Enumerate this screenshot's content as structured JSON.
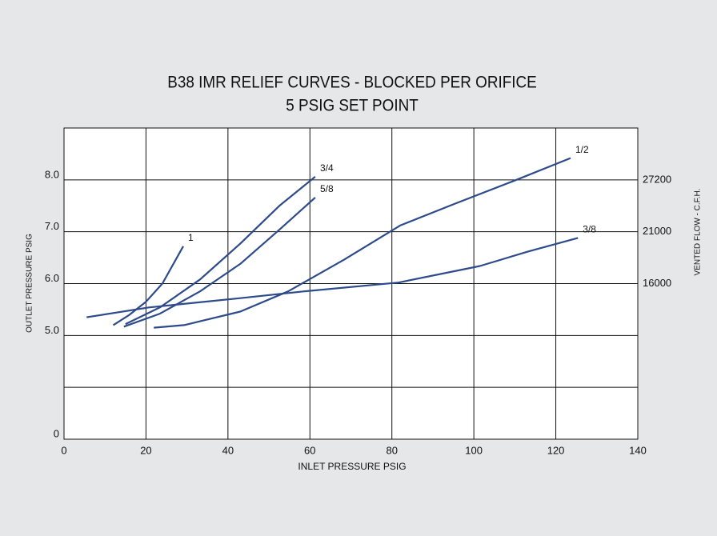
{
  "chart_data": {
    "type": "line",
    "title": "B38 IMR RELIEF CURVES - BLOCKED PER ORIFICE",
    "subtitle": "5 PSIG SET POINT",
    "x_label": "INLET  PRESSURE PSIG",
    "y_label": "OUTLET PRESSURE PSIG",
    "y2_label": "VENTED FLOW - C.F.H.",
    "xlim": [
      0,
      140
    ],
    "xticks": [
      0,
      20,
      40,
      60,
      80,
      100,
      120,
      140
    ],
    "ylim": [
      0,
      9
    ],
    "ybreak": [
      0,
      4
    ],
    "yticks": [
      0,
      {
        "value": 5,
        "label": "5.0"
      },
      {
        "value": 6,
        "label": "6.0"
      },
      {
        "value": 7,
        "label": "7.0"
      },
      {
        "value": 8,
        "label": "8.0"
      }
    ],
    "ygrid": [
      4,
      5,
      6,
      7,
      8
    ],
    "y2ticks": [
      16000,
      21000,
      27200
    ],
    "y2_positions": [
      6,
      7,
      8
    ],
    "grid": true,
    "series": [
      {
        "name": "1",
        "color": "#2d4a8a",
        "x": [
          12,
          16,
          20,
          24,
          29.1
        ],
        "values": [
          5.2,
          5.4,
          5.65,
          6.0,
          6.72
        ]
      },
      {
        "name": "3/4",
        "color": "#2d4a8a",
        "x": [
          15,
          23.4,
          33.2,
          43,
          52.7,
          61.3
        ],
        "values": [
          5.22,
          5.54,
          6.08,
          6.77,
          7.51,
          8.06
        ]
      },
      {
        "name": "5/8",
        "color": "#2d4a8a",
        "x": [
          14.6,
          23.4,
          33.2,
          43,
          52.7,
          61.3
        ],
        "values": [
          5.17,
          5.42,
          5.85,
          6.38,
          7.05,
          7.66
        ]
      },
      {
        "name": "1/2",
        "color": "#2d4a8a",
        "x": [
          21.9,
          29.3,
          43,
          54.7,
          68.3,
          82,
          95.7,
          109.4,
          123.6
        ],
        "values": [
          5.15,
          5.2,
          5.46,
          5.85,
          6.46,
          7.12,
          7.55,
          7.97,
          8.42
        ]
      },
      {
        "name": "3/8",
        "color": "#2d4a8a",
        "x": [
          5.5,
          20.7,
          43,
          58.6,
          81.6,
          101.5,
          113.3,
          125.4
        ],
        "values": [
          5.35,
          5.54,
          5.72,
          5.85,
          6.02,
          6.34,
          6.62,
          6.88
        ]
      }
    ]
  }
}
